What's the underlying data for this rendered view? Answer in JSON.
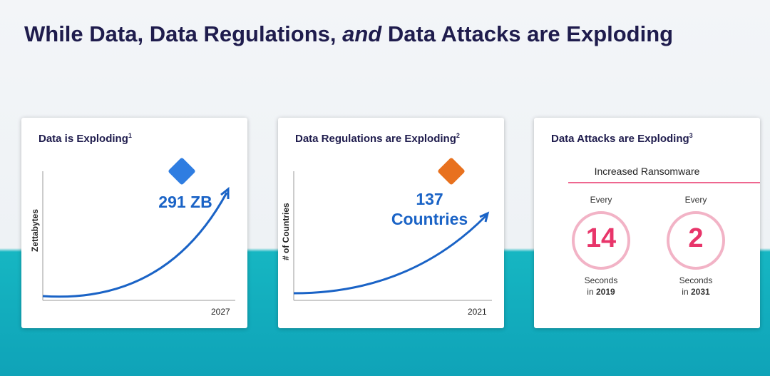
{
  "header": {
    "title_start": "While Data, Data Regulations, ",
    "title_italic": "and",
    "title_end": " Data Attacks are Exploding"
  },
  "cards": [
    {
      "title": "Data is Exploding",
      "note": "1",
      "y_label": "Zettabytes",
      "x_label": "2027",
      "callout": [
        "291 ZB"
      ]
    },
    {
      "title": "Data Regulations are Exploding",
      "note": "2",
      "y_label": "# of Countries",
      "x_label": "2021",
      "callout": [
        "137",
        "Countries"
      ]
    },
    {
      "title": "Data Attacks are Exploding",
      "note": "3",
      "subtitle": "Increased Ransomware",
      "stats": [
        {
          "top": "Every",
          "number": "14",
          "unit": "Seconds",
          "prefix": "in",
          "year": "2019"
        },
        {
          "top": "Every",
          "number": "2",
          "unit": "Seconds",
          "prefix": "in",
          "year": "2031"
        }
      ]
    }
  ]
}
